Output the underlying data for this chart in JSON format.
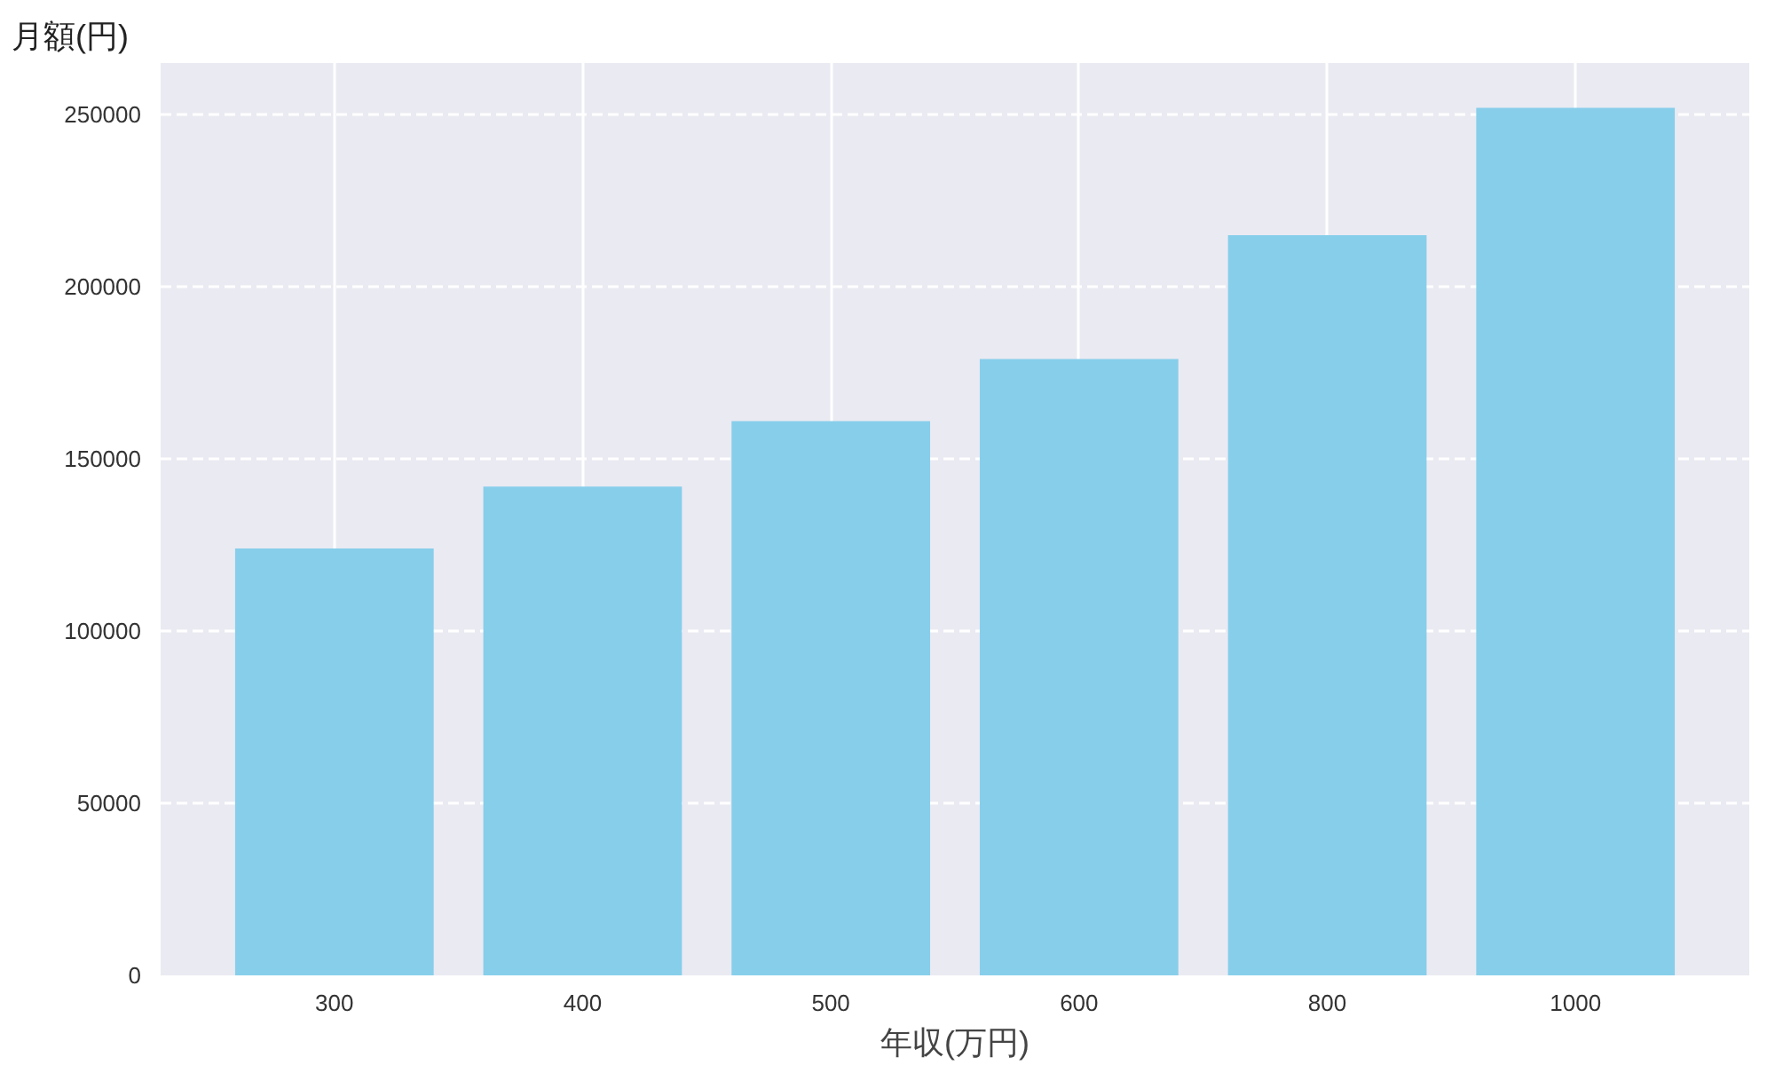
{
  "chart_data": {
    "type": "bar",
    "xlabel": "年収(万円)",
    "ylabel": "月額(円)",
    "categories": [
      "300",
      "400",
      "500",
      "600",
      "800",
      "1000"
    ],
    "values": [
      124000,
      142000,
      161000,
      179000,
      215000,
      252000
    ],
    "color": "#87ceeb",
    "ylim": [
      0,
      265000
    ],
    "yticks": [
      0,
      50000,
      100000,
      150000,
      200000,
      250000
    ],
    "grid": true
  }
}
